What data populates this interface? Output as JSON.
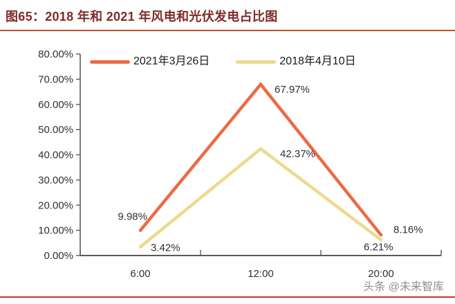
{
  "page": {
    "title": "图65：2018 年和 2021 年风电和光伏发电占比图",
    "watermark": "头条 @未来智库"
  },
  "colors": {
    "title_text": "#7E2B27",
    "title_rule": "#BE4B2B",
    "bottom_rule": "#C0392B",
    "axis": "#595959",
    "tick_text": "#303030",
    "data_label_text": "#2b2f38",
    "series_2021": "#EC6B45",
    "series_2018": "#EFD98E"
  },
  "chart_data": {
    "type": "line",
    "title": "2018年和2021年风电和光伏发电占比图",
    "categories": [
      "6:00",
      "12:00",
      "20:00"
    ],
    "series": [
      {
        "name": "2021年3月26日",
        "color": "#EC6B45",
        "values": [
          9.98,
          67.97,
          8.16
        ]
      },
      {
        "name": "2018年4月10日",
        "color": "#EFD98E",
        "values": [
          3.42,
          42.37,
          6.21
        ]
      }
    ],
    "xlabel": "",
    "ylabel": "",
    "ylim": [
      0,
      80
    ],
    "ytick_step": 10,
    "ytick_format": "0.00%",
    "grid": false,
    "legend_position": "top",
    "data_labels": true
  }
}
